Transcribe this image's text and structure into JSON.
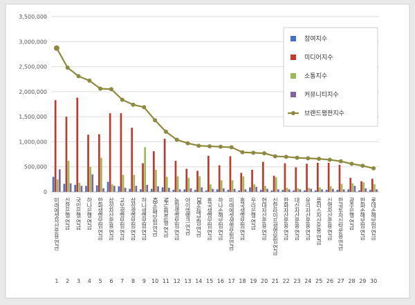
{
  "chart_data": {
    "type": "bar",
    "title": "",
    "xlabel": "",
    "ylabel": "",
    "ylim": [
      0,
      3500000
    ],
    "yticks": [
      "0",
      "500,000",
      "1,000,000",
      "1,500,000",
      "2,000,000",
      "2,500,000",
      "3,000,000",
      "3,500,000"
    ],
    "grid": true,
    "legend_position": "top-right",
    "categories": [
      "1",
      "2",
      "3",
      "4",
      "5",
      "6",
      "7",
      "8",
      "9",
      "10",
      "11",
      "12",
      "13",
      "14",
      "15",
      "16",
      "17",
      "18",
      "19",
      "20",
      "21",
      "22",
      "23",
      "24",
      "25",
      "26",
      "27",
      "28",
      "29",
      "30"
    ],
    "category_names": [
      "미래에셋자산운용 연금",
      "신한은행 연금",
      "국민은행 연금",
      "하나은행 연금",
      "한화생명보험 연금",
      "삼성자산운용 연금",
      "교보생명보험 연금",
      "삼성생명보험 연금",
      "하나생명보험 연금",
      "KB손해보험 연금",
      "NH농협은행 연금",
      "농협생명보험 연금",
      "아이엠뱅크 연금",
      "DB손해보험 연금",
      "흥국생명보험 연금",
      "하나손해보험 연금",
      "미래에셋생명보험 연금",
      "흥국생명보험 연금",
      "우리은행 연금",
      "현대자산운용 연금",
      "신한라이프생명보험 연금",
      "한화자산운용 연금",
      "대신자산운용 연금",
      "유리자산운용 연금",
      "플러스자산운용 연금",
      "신영자산운용 연금",
      "한국투자신탁운용 연금",
      "광주은행 연금",
      "한화손해보험 연금",
      "롯데손해보험 연금"
    ],
    "series": [
      {
        "name": "참여지수",
        "color": "#4472c4",
        "kind": "bar",
        "values": [
          300000,
          160000,
          140000,
          120000,
          130000,
          200000,
          110000,
          60000,
          50000,
          60000,
          90000,
          40000,
          50000,
          40000,
          30000,
          50000,
          40000,
          30000,
          90000,
          40000,
          30000,
          40000,
          30000,
          30000,
          30000,
          40000,
          40000,
          50000,
          30000,
          40000
        ]
      },
      {
        "name": "미디어지수",
        "color": "#c0392b",
        "kind": "bar",
        "values": [
          1830000,
          1500000,
          1880000,
          1140000,
          1150000,
          1570000,
          1570000,
          1280000,
          570000,
          810000,
          1060000,
          620000,
          460000,
          420000,
          720000,
          530000,
          710000,
          380000,
          440000,
          600000,
          320000,
          570000,
          490000,
          560000,
          580000,
          580000,
          540000,
          280000,
          210000,
          260000
        ]
      },
      {
        "name": "소통지수",
        "color": "#9bbb59",
        "kind": "bar",
        "values": [
          250000,
          620000,
          180000,
          500000,
          680000,
          150000,
          340000,
          340000,
          890000,
          440000,
          300000,
          310000,
          280000,
          310000,
          150000,
          230000,
          230000,
          310000,
          150000,
          120000,
          290000,
          80000,
          70000,
          80000,
          90000,
          110000,
          160000,
          170000,
          190000,
          150000
        ]
      },
      {
        "name": "커뮤니티지수",
        "color": "#8064a2",
        "kind": "bar",
        "values": [
          450000,
          170000,
          120000,
          350000,
          70000,
          120000,
          80000,
          120000,
          140000,
          110000,
          80000,
          50000,
          70000,
          90000,
          60000,
          70000,
          60000,
          50000,
          100000,
          60000,
          50000,
          50000,
          50000,
          60000,
          50000,
          60000,
          50000,
          120000,
          70000,
          50000
        ]
      },
      {
        "name": "브랜드평판지수",
        "color": "#8c8a3e",
        "kind": "line",
        "values": [
          2870000,
          2480000,
          2310000,
          2220000,
          2060000,
          2050000,
          1840000,
          1740000,
          1690000,
          1430000,
          1200000,
          1040000,
          970000,
          920000,
          910000,
          900000,
          890000,
          790000,
          780000,
          770000,
          710000,
          700000,
          680000,
          670000,
          660000,
          640000,
          610000,
          560000,
          520000,
          470000
        ]
      }
    ]
  }
}
